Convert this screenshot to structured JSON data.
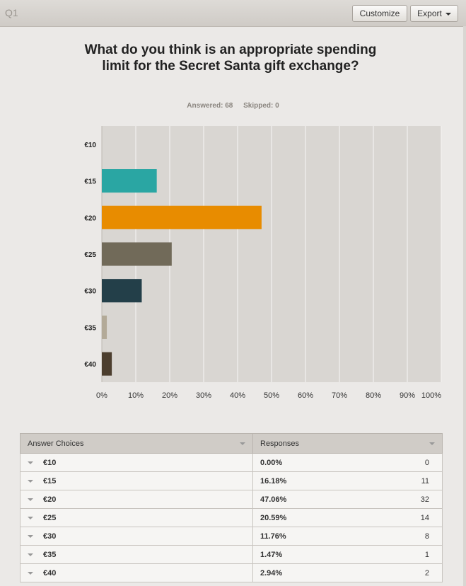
{
  "header": {
    "question_id": "Q1",
    "customize_label": "Customize",
    "export_label": "Export"
  },
  "title": "What do you think is an appropriate spending limit for the Secret Santa gift exchange?",
  "stats": {
    "answered": "Answered: 68",
    "skipped": "Skipped: 0"
  },
  "colors": {
    "plot_bg": "#d9d6d2",
    "bars": [
      "#c9c4bd",
      "#2aa6a3",
      "#e88c00",
      "#716a59",
      "#233f49",
      "#b3aa98",
      "#4c3e2e"
    ]
  },
  "chart_data": {
    "type": "bar",
    "orientation": "horizontal",
    "categories": [
      "€10",
      "€15",
      "€20",
      "€25",
      "€30",
      "€35",
      "€40"
    ],
    "values": [
      0,
      16.18,
      47.06,
      20.59,
      11.76,
      1.47,
      2.94
    ],
    "xlim": [
      0,
      100
    ],
    "xticks": [
      "0%",
      "10%",
      "20%",
      "30%",
      "40%",
      "50%",
      "60%",
      "70%",
      "80%",
      "90%",
      "100%"
    ],
    "grid": true
  },
  "table": {
    "headers": [
      "Answer Choices",
      "Responses"
    ],
    "rows": [
      {
        "choice": "€10",
        "percent": "0.00%",
        "count": "0"
      },
      {
        "choice": "€15",
        "percent": "16.18%",
        "count": "11"
      },
      {
        "choice": "€20",
        "percent": "47.06%",
        "count": "32"
      },
      {
        "choice": "€25",
        "percent": "20.59%",
        "count": "14"
      },
      {
        "choice": "€30",
        "percent": "11.76%",
        "count": "8"
      },
      {
        "choice": "€35",
        "percent": "1.47%",
        "count": "1"
      },
      {
        "choice": "€40",
        "percent": "2.94%",
        "count": "2"
      }
    ]
  }
}
